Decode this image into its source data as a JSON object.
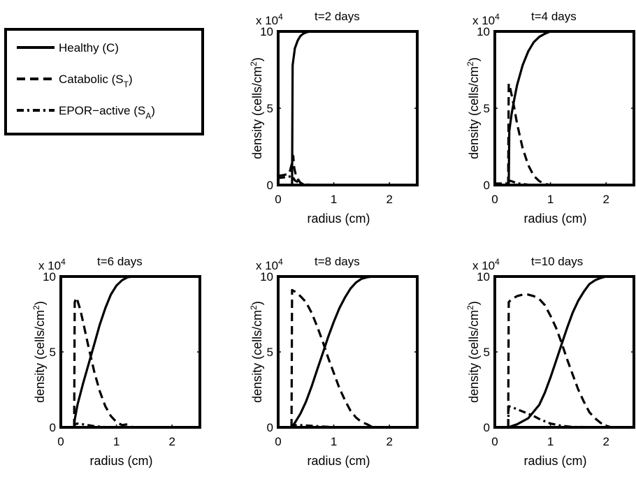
{
  "legend": {
    "items": [
      {
        "label": "Healthy (C)",
        "style": "solid"
      },
      {
        "label": "Catabolic (S",
        "sub": "T",
        "tail": ")",
        "style": "dashed"
      },
      {
        "label": "EPOR−active (S",
        "sub": "A",
        "tail": ")",
        "style": "dashdot"
      }
    ]
  },
  "chart_data": [
    {
      "type": "line",
      "title": "t=2 days",
      "exponent_base": "x 10",
      "exponent": "4",
      "xlabel": "radius (cm)",
      "ylabel_main": "density (cells/cm",
      "ylabel_sup": "2",
      "ylabel_tail": ")",
      "xlim": [
        0,
        2.5
      ],
      "ylim": [
        0,
        10
      ],
      "xticks": [
        "0",
        "1",
        "2"
      ],
      "yticks": [
        "0",
        "5",
        "10"
      ],
      "series": [
        {
          "name": "Healthy (C)",
          "style": "solid",
          "x": [
            0.24,
            0.25,
            0.26,
            0.3,
            0.35,
            0.4,
            0.45,
            0.5,
            0.55,
            0.6,
            2.5
          ],
          "y": [
            0,
            0,
            7.8,
            8.9,
            9.4,
            9.7,
            9.85,
            9.93,
            9.98,
            10,
            10
          ]
        },
        {
          "name": "Catabolic (ST)",
          "style": "dashed",
          "x": [
            0,
            0.1,
            0.2,
            0.24,
            0.27,
            0.29,
            0.32,
            0.35,
            0.4,
            0.45,
            0.5,
            0.6,
            2.5
          ],
          "y": [
            0.6,
            0.65,
            0.75,
            1.3,
            1.9,
            1.1,
            0.6,
            0.4,
            0.15,
            0.05,
            0,
            0,
            0
          ]
        },
        {
          "name": "EPOR-active (SA)",
          "style": "dashdot",
          "x": [
            0,
            0.1,
            0.2,
            0.25,
            0.3,
            0.4,
            0.5,
            0.7,
            2.5
          ],
          "y": [
            0.45,
            0.5,
            0.55,
            0.6,
            0.3,
            0.1,
            0.03,
            0,
            0
          ]
        }
      ]
    },
    {
      "type": "line",
      "title": "t=4 days",
      "exponent_base": "x 10",
      "exponent": "4",
      "xlabel": "radius (cm)",
      "ylabel_main": "density (cells/cm",
      "ylabel_sup": "2",
      "ylabel_tail": ")",
      "xlim": [
        0,
        2.5
      ],
      "ylim": [
        0,
        10
      ],
      "xticks": [
        "0",
        "1",
        "2"
      ],
      "yticks": [
        "0",
        "5",
        "10"
      ],
      "series": [
        {
          "name": "Healthy (C)",
          "style": "solid",
          "x": [
            0.24,
            0.25,
            0.26,
            0.3,
            0.35,
            0.4,
            0.5,
            0.6,
            0.7,
            0.8,
            0.9,
            1.0,
            2.5
          ],
          "y": [
            0,
            0,
            3.5,
            4.6,
            5.6,
            6.5,
            7.8,
            8.7,
            9.3,
            9.65,
            9.85,
            10,
            10
          ]
        },
        {
          "name": "Catabolic (ST)",
          "style": "dashed",
          "x": [
            0.24,
            0.25,
            0.27,
            0.3,
            0.35,
            0.4,
            0.5,
            0.6,
            0.7,
            0.8,
            0.9,
            1.0,
            2.5
          ],
          "y": [
            0,
            6.6,
            6.4,
            5.9,
            5.0,
            4.0,
            2.4,
            1.3,
            0.6,
            0.25,
            0.08,
            0,
            0
          ]
        },
        {
          "name": "EPOR-active (SA)",
          "style": "dashdot",
          "x": [
            0,
            0.24,
            0.25,
            0.3,
            0.4,
            0.6,
            2.5
          ],
          "y": [
            0.1,
            0.1,
            0.3,
            0.25,
            0.12,
            0.02,
            0
          ]
        }
      ]
    },
    {
      "type": "line",
      "title": "t=6 days",
      "exponent_base": "x 10",
      "exponent": "4",
      "xlabel": "radius (cm)",
      "ylabel_main": "density (cells/cm",
      "ylabel_sup": "2",
      "ylabel_tail": ")",
      "xlim": [
        0,
        2.5
      ],
      "ylim": [
        0,
        10
      ],
      "xticks": [
        "0",
        "1",
        "2"
      ],
      "yticks": [
        "0",
        "5",
        "10"
      ],
      "series": [
        {
          "name": "Healthy (C)",
          "style": "solid",
          "x": [
            0.24,
            0.25,
            0.3,
            0.4,
            0.5,
            0.6,
            0.7,
            0.8,
            0.9,
            1.0,
            1.1,
            1.2,
            1.3,
            2.5
          ],
          "y": [
            0,
            0.5,
            1.5,
            2.9,
            4.2,
            5.5,
            6.8,
            7.9,
            8.8,
            9.4,
            9.75,
            9.95,
            10,
            10
          ]
        },
        {
          "name": "Catabolic (ST)",
          "style": "dashed",
          "x": [
            0.24,
            0.25,
            0.28,
            0.3,
            0.35,
            0.4,
            0.5,
            0.6,
            0.7,
            0.8,
            0.9,
            1.0,
            1.1,
            1.2,
            1.3,
            2.5
          ],
          "y": [
            0,
            8.3,
            8.6,
            8.4,
            7.8,
            7.0,
            5.3,
            3.7,
            2.4,
            1.4,
            0.75,
            0.35,
            0.15,
            0.2,
            0,
            0
          ]
        },
        {
          "name": "EPOR-active (SA)",
          "style": "dashdot",
          "x": [
            0.24,
            0.25,
            0.3,
            0.4,
            0.6,
            0.8,
            2.5
          ],
          "y": [
            0,
            0.2,
            0.25,
            0.2,
            0.08,
            0.02,
            0
          ]
        }
      ]
    },
    {
      "type": "line",
      "title": "t=8 days",
      "exponent_base": "x 10",
      "exponent": "4",
      "xlabel": "radius (cm)",
      "ylabel_main": "density (cells/cm",
      "ylabel_sup": "2",
      "ylabel_tail": ")",
      "xlim": [
        0,
        2.5
      ],
      "ylim": [
        0,
        10
      ],
      "xticks": [
        "0",
        "1",
        "2"
      ],
      "yticks": [
        "0",
        "5",
        "10"
      ],
      "series": [
        {
          "name": "Healthy (C)",
          "style": "solid",
          "x": [
            0.24,
            0.3,
            0.4,
            0.5,
            0.6,
            0.7,
            0.8,
            0.9,
            1.0,
            1.1,
            1.2,
            1.3,
            1.4,
            1.5,
            1.6,
            1.7,
            2.5
          ],
          "y": [
            0,
            0.3,
            0.9,
            1.7,
            2.7,
            3.8,
            4.9,
            6.0,
            7.0,
            7.9,
            8.6,
            9.2,
            9.6,
            9.85,
            9.95,
            10,
            10
          ]
        },
        {
          "name": "Catabolic (ST)",
          "style": "dashed",
          "x": [
            0.24,
            0.25,
            0.3,
            0.4,
            0.5,
            0.6,
            0.7,
            0.8,
            0.9,
            1.0,
            1.1,
            1.2,
            1.3,
            1.4,
            1.5,
            1.6,
            1.7,
            2.5
          ],
          "y": [
            0,
            9.1,
            9.0,
            8.7,
            8.3,
            7.6,
            6.7,
            5.7,
            4.6,
            3.6,
            2.6,
            1.8,
            1.1,
            0.65,
            0.35,
            0.2,
            0,
            0
          ]
        },
        {
          "name": "EPOR-active (SA)",
          "style": "dashdot",
          "x": [
            0.24,
            0.25,
            0.4,
            0.6,
            0.8,
            1.0,
            2.5
          ],
          "y": [
            0,
            0.15,
            0.15,
            0.1,
            0.05,
            0.02,
            0
          ]
        }
      ]
    },
    {
      "type": "line",
      "title": "t=10 days",
      "exponent_base": "x 10",
      "exponent": "4",
      "xlabel": "radius (cm)",
      "ylabel_main": "density (cells/cm",
      "ylabel_sup": "2",
      "ylabel_tail": ")",
      "xlim": [
        0,
        2.5
      ],
      "ylim": [
        0,
        10
      ],
      "xticks": [
        "0",
        "1",
        "2"
      ],
      "yticks": [
        "0",
        "5",
        "10"
      ],
      "series": [
        {
          "name": "Healthy (C)",
          "style": "solid",
          "x": [
            0.24,
            0.4,
            0.6,
            0.8,
            0.9,
            1.0,
            1.1,
            1.2,
            1.3,
            1.4,
            1.5,
            1.6,
            1.7,
            1.8,
            1.9,
            2.0,
            2.1,
            2.5
          ],
          "y": [
            0,
            0.2,
            0.6,
            1.5,
            2.3,
            3.3,
            4.4,
            5.5,
            6.6,
            7.6,
            8.4,
            9.0,
            9.5,
            9.75,
            9.9,
            10,
            10,
            10
          ]
        },
        {
          "name": "Catabolic (ST)",
          "style": "dashed",
          "x": [
            0.24,
            0.25,
            0.3,
            0.4,
            0.5,
            0.6,
            0.7,
            0.8,
            0.9,
            1.0,
            1.1,
            1.2,
            1.3,
            1.4,
            1.5,
            1.6,
            1.7,
            1.8,
            1.9,
            2.0,
            2.1,
            2.5
          ],
          "y": [
            0,
            8.3,
            8.5,
            8.7,
            8.8,
            8.8,
            8.7,
            8.5,
            8.1,
            7.4,
            6.6,
            5.6,
            4.5,
            3.5,
            2.5,
            1.7,
            1.0,
            0.6,
            0.3,
            0.1,
            0,
            0
          ]
        },
        {
          "name": "EPOR-active (SA)",
          "style": "dashdot",
          "x": [
            0.24,
            0.25,
            0.3,
            0.4,
            0.5,
            0.6,
            0.7,
            0.8,
            0.9,
            1.0,
            1.2,
            1.4,
            2.5
          ],
          "y": [
            0,
            1.4,
            1.35,
            1.2,
            1.05,
            0.9,
            0.75,
            0.55,
            0.4,
            0.25,
            0.1,
            0.03,
            0
          ]
        }
      ]
    }
  ]
}
